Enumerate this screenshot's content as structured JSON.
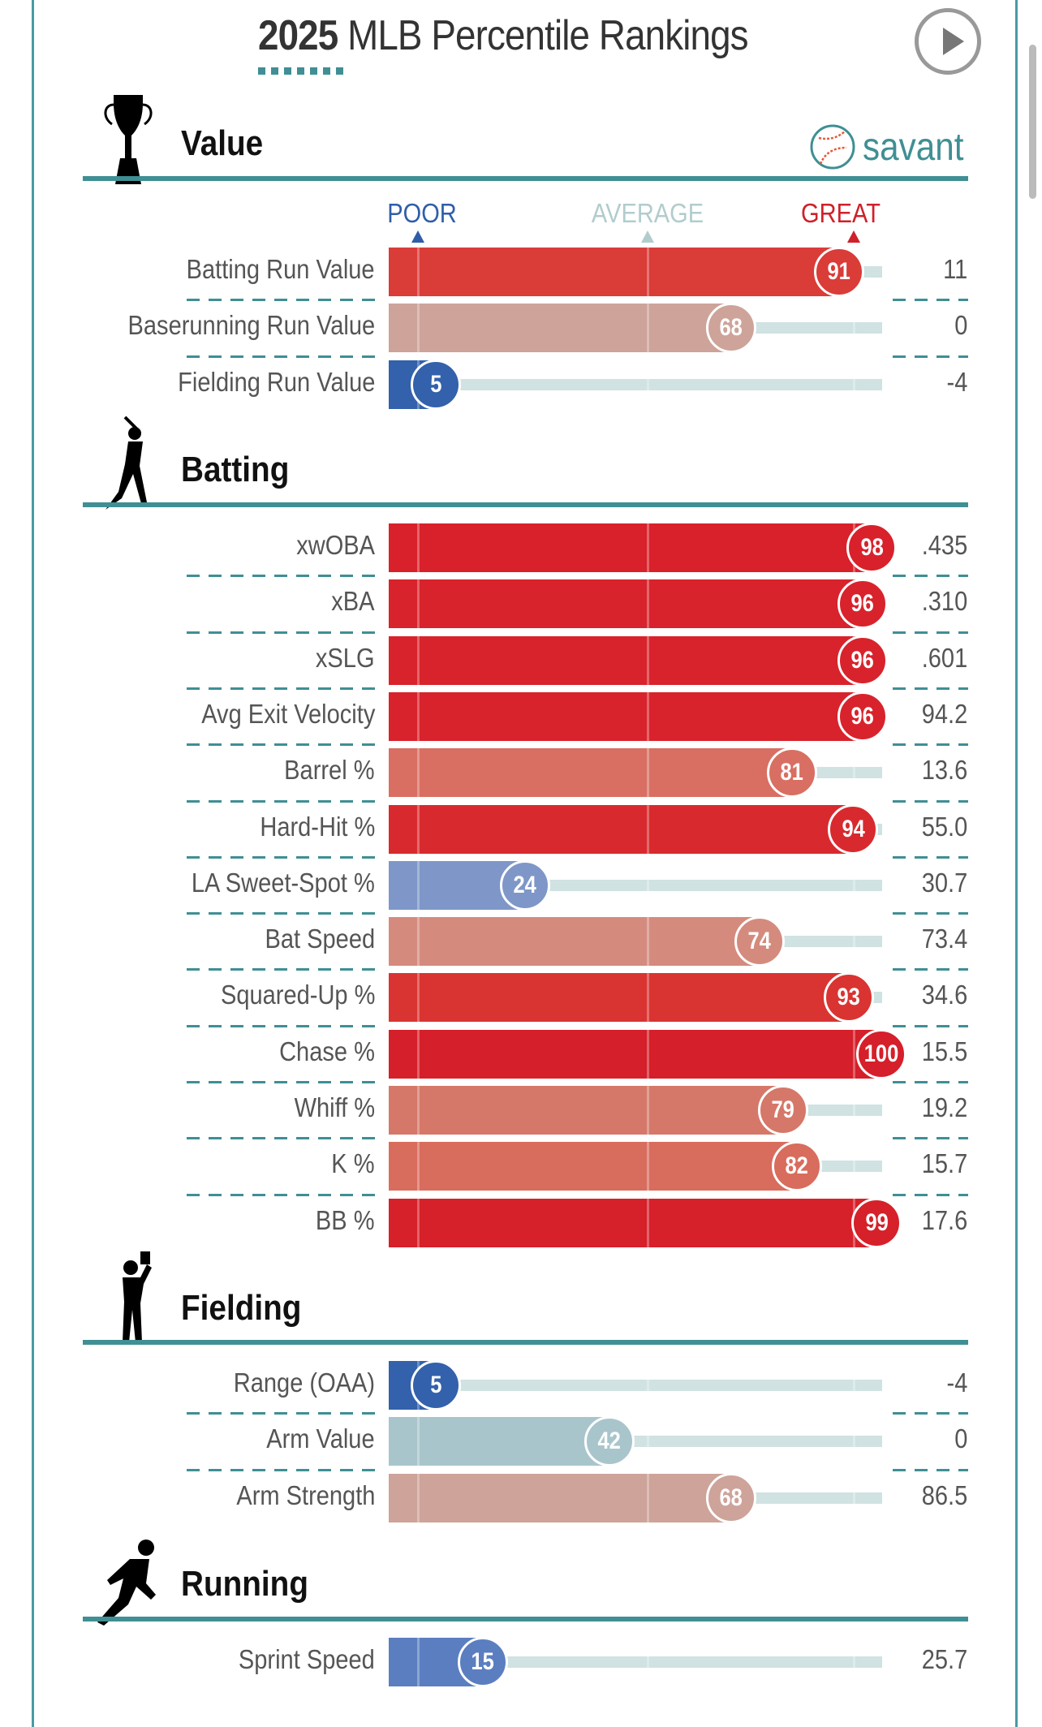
{
  "title": {
    "year": "2025",
    "rest": "MLB Percentile Rankings"
  },
  "brand": "savant",
  "legend": {
    "poor": "POOR",
    "average": "AVERAGE",
    "great": "GREAT",
    "poor_color": "#2f5ea8",
    "average_color": "#b2cccc",
    "great_color": "#d0202a"
  },
  "sections": [
    {
      "title": "Value",
      "icon": "trophy-icon",
      "rows": [
        {
          "label": "Batting Run Value",
          "percentile": 91,
          "value": "11",
          "color": "#da3c38"
        },
        {
          "label": "Baserunning Run Value",
          "percentile": 68,
          "value": "0",
          "color": "#cda39a"
        },
        {
          "label": "Fielding Run Value",
          "percentile": 5,
          "value": "-4",
          "color": "#3361ab"
        }
      ]
    },
    {
      "title": "Batting",
      "icon": "batter-icon",
      "rows": [
        {
          "label": "xwOBA",
          "percentile": 98,
          "value": ".435",
          "color": "#d8212b"
        },
        {
          "label": "xBA",
          "percentile": 96,
          "value": ".310",
          "color": "#d8232c"
        },
        {
          "label": "xSLG",
          "percentile": 96,
          "value": ".601",
          "color": "#d8232c"
        },
        {
          "label": "Avg Exit Velocity",
          "percentile": 96,
          "value": "94.2",
          "color": "#d8232c"
        },
        {
          "label": "Barrel %",
          "percentile": 81,
          "value": "13.6",
          "color": "#d86f62"
        },
        {
          "label": "Hard-Hit %",
          "percentile": 94,
          "value": "55.0",
          "color": "#d82a2e"
        },
        {
          "label": "LA Sweet-Spot %",
          "percentile": 24,
          "value": "30.7",
          "color": "#7e97c8"
        },
        {
          "label": "Bat Speed",
          "percentile": 74,
          "value": "73.4",
          "color": "#d48b7e"
        },
        {
          "label": "Squared-Up %",
          "percentile": 93,
          "value": "34.6",
          "color": "#d93431"
        },
        {
          "label": "Chase %",
          "percentile": 100,
          "value": "15.5",
          "color": "#d51f2a"
        },
        {
          "label": "Whiff %",
          "percentile": 79,
          "value": "19.2",
          "color": "#d57869"
        },
        {
          "label": "K %",
          "percentile": 82,
          "value": "15.7",
          "color": "#d86c5d"
        },
        {
          "label": "BB %",
          "percentile": 99,
          "value": "17.6",
          "color": "#d6202a"
        }
      ]
    },
    {
      "title": "Fielding",
      "icon": "fielder-icon",
      "rows": [
        {
          "label": "Range (OAA)",
          "percentile": 5,
          "value": "-4",
          "color": "#3361ab"
        },
        {
          "label": "Arm Value",
          "percentile": 42,
          "value": "0",
          "color": "#a9c5cc"
        },
        {
          "label": "Arm Strength",
          "percentile": 68,
          "value": "86.5",
          "color": "#cda39a"
        }
      ]
    },
    {
      "title": "Running",
      "icon": "runner-icon",
      "rows": [
        {
          "label": "Sprint Speed",
          "percentile": 15,
          "value": "25.7",
          "color": "#5b7ec0"
        }
      ]
    }
  ]
}
